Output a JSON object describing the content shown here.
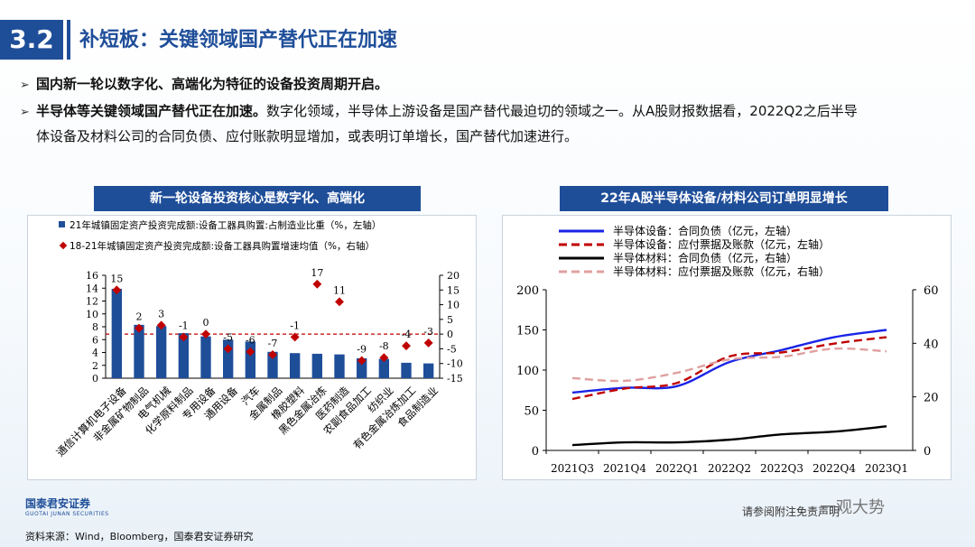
{
  "header": {
    "number": "3.2",
    "title": "补短板：关键领域国产替代正在加速"
  },
  "bullets": [
    {
      "bold": "国内新一轮以数字化、高端化为特征的设备投资周期开启。",
      "text": ""
    },
    {
      "bold": "半导体等关键领域国产替代正在加速。",
      "text": "数字化领域，半导体上游设备是国产替代最迫切的领域之一。从A股财报数据看，2022Q2之后半导",
      "text2": "体设备及材料公司的合同负债、应付账款明显增加，或表明订单增长，国产替代加速进行。"
    }
  ],
  "footer": {
    "logo_cn": "国泰君安证券",
    "logo_en": "GUOTAI JUNAN SECURITIES",
    "source": "资料来源：Wind，Bloomberg，国泰君安证券研究",
    "note": "请参阅附注免责声明",
    "watermark": "一观大势"
  },
  "colors": {
    "brand": "#1f4e99",
    "bar": "#1f4e99",
    "dot": "#c00000",
    "blue_line": "#1a24e6",
    "red_dash": "#c00000",
    "black_line": "#000000",
    "pink_dash": "#e0a0a0"
  },
  "chart_data": [
    {
      "type": "bar",
      "title": "新一轮设备投资核心是数字化、高端化",
      "legend": [
        "21年城镇固定资产投资完成额:设备工器具购置:占制造业比重（%，左轴）",
        "18-21年城镇固定资产投资完成额:设备工器具购置增速均值（%，右轴）"
      ],
      "categories": [
        "通信计算机电子设备",
        "非金属矿物制品",
        "电气机械",
        "化学原料制品",
        "专用设备",
        "通用设备",
        "汽车",
        "金属制品",
        "橡胶塑料",
        "黑色金属冶炼",
        "医药制造",
        "农副食品加工",
        "纺织业",
        "有色金属冶炼加工",
        "食品制造业"
      ],
      "series": [
        {
          "name": "21年城镇固定资产投资完成额:设备工器具购置:占制造业比重（%，左轴）",
          "axis": "left",
          "kind": "bar",
          "values": [
            13.9,
            8.3,
            8.1,
            7.0,
            6.5,
            6.0,
            5.7,
            4.1,
            3.9,
            3.8,
            3.7,
            3.1,
            3.0,
            2.4,
            2.3
          ]
        },
        {
          "name": "18-21年城镇固定资产投资完成额:设备工器具购置增速均值（%，右轴）",
          "axis": "right",
          "kind": "scatter",
          "values": [
            15,
            2,
            3,
            -1,
            0,
            -5,
            -6,
            -7,
            -1,
            17,
            11,
            -9,
            -8,
            -4,
            -3
          ]
        }
      ],
      "data_labels": [
        "15",
        "2",
        "3",
        "-1",
        "0",
        "-5",
        "-6",
        "-7",
        "-1",
        "17",
        "11",
        "-9",
        "-8",
        "-4",
        "-3"
      ],
      "left_axis": {
        "ylim": [
          0,
          16
        ],
        "ticks": [
          "0",
          "2",
          "4",
          "6",
          "8",
          "10",
          "12",
          "14",
          "16"
        ]
      },
      "right_axis": {
        "ylim": [
          -15,
          20
        ],
        "ticks": [
          "-15",
          "-10",
          "-5",
          "0",
          "5",
          "10",
          "15",
          "20"
        ]
      },
      "reference_line": {
        "axis": "right",
        "value": 0
      }
    },
    {
      "type": "line",
      "title": "22年A股半导体设备/材料公司订单明显增长",
      "categories": [
        "2021Q3",
        "2021Q4",
        "2022Q1",
        "2022Q2",
        "2022Q3",
        "2022Q4",
        "2023Q1"
      ],
      "series": [
        {
          "name": "半导体设备：合同负债（亿元，左轴）",
          "axis": "left",
          "values": [
            72,
            78,
            80,
            110,
            125,
            141,
            150
          ]
        },
        {
          "name": "半导体设备：应付票据及账款（亿元，左轴）",
          "axis": "left",
          "values": [
            64,
            77,
            84,
            117,
            122,
            133,
            141
          ]
        },
        {
          "name": "半导体材料：合同负债（亿元，右轴）",
          "axis": "right",
          "values": [
            2,
            3,
            3,
            4,
            6,
            7,
            9
          ]
        },
        {
          "name": "半导体材料：应付票据及账款（亿元，右轴）",
          "axis": "right",
          "values": [
            27,
            26,
            29,
            34,
            35,
            38,
            37
          ]
        }
      ],
      "left_axis": {
        "ylim": [
          0,
          200
        ],
        "ticks": [
          "0",
          "50",
          "100",
          "150",
          "200"
        ]
      },
      "right_axis": {
        "ylim": [
          0,
          60
        ],
        "ticks": [
          "0",
          "20",
          "40",
          "60"
        ]
      }
    }
  ]
}
